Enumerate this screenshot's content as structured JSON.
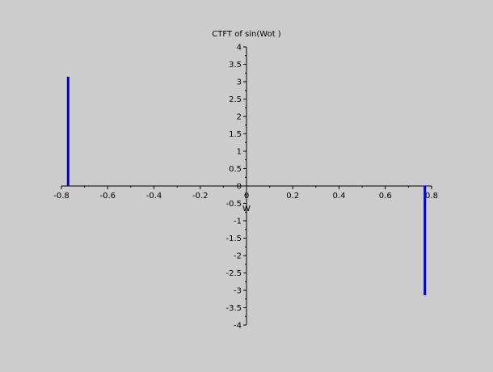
{
  "chart_data": {
    "type": "bar",
    "title": "CTFT of sin(Wot )",
    "xlabel": "W",
    "ylabel": "",
    "xlim": [
      -0.8,
      0.8
    ],
    "ylim": [
      -4,
      4
    ],
    "x_ticks": [
      -0.8,
      -0.6,
      -0.4,
      -0.2,
      0,
      0.2,
      0.4,
      0.6,
      0.8
    ],
    "x_tick_labels": [
      "-0.8",
      "-0.6",
      "-0.4",
      "-0.2",
      "0",
      "0.2",
      "0.4",
      "0.6",
      "0.8"
    ],
    "y_ticks": [
      4,
      3.5,
      3,
      2.5,
      2,
      1.5,
      1,
      0.5,
      0,
      -0.5,
      -1,
      -1.5,
      -2,
      -2.5,
      -3,
      -3.5,
      -4
    ],
    "y_tick_labels": [
      "4",
      "3.5",
      "3",
      "2.5",
      "2",
      "1.5",
      "1",
      "0.5",
      "0",
      "-0.5",
      "-1",
      "-1.5",
      "-2",
      "-2.5",
      "-3",
      "-3.5",
      "-4"
    ],
    "series": [
      {
        "x": [
          -0.785,
          0.785
        ],
        "values": [
          3.1416,
          -3.1416
        ],
        "color": "#0000cc"
      }
    ],
    "grid": false,
    "axes_through_origin": true,
    "background": "#cccccc"
  }
}
